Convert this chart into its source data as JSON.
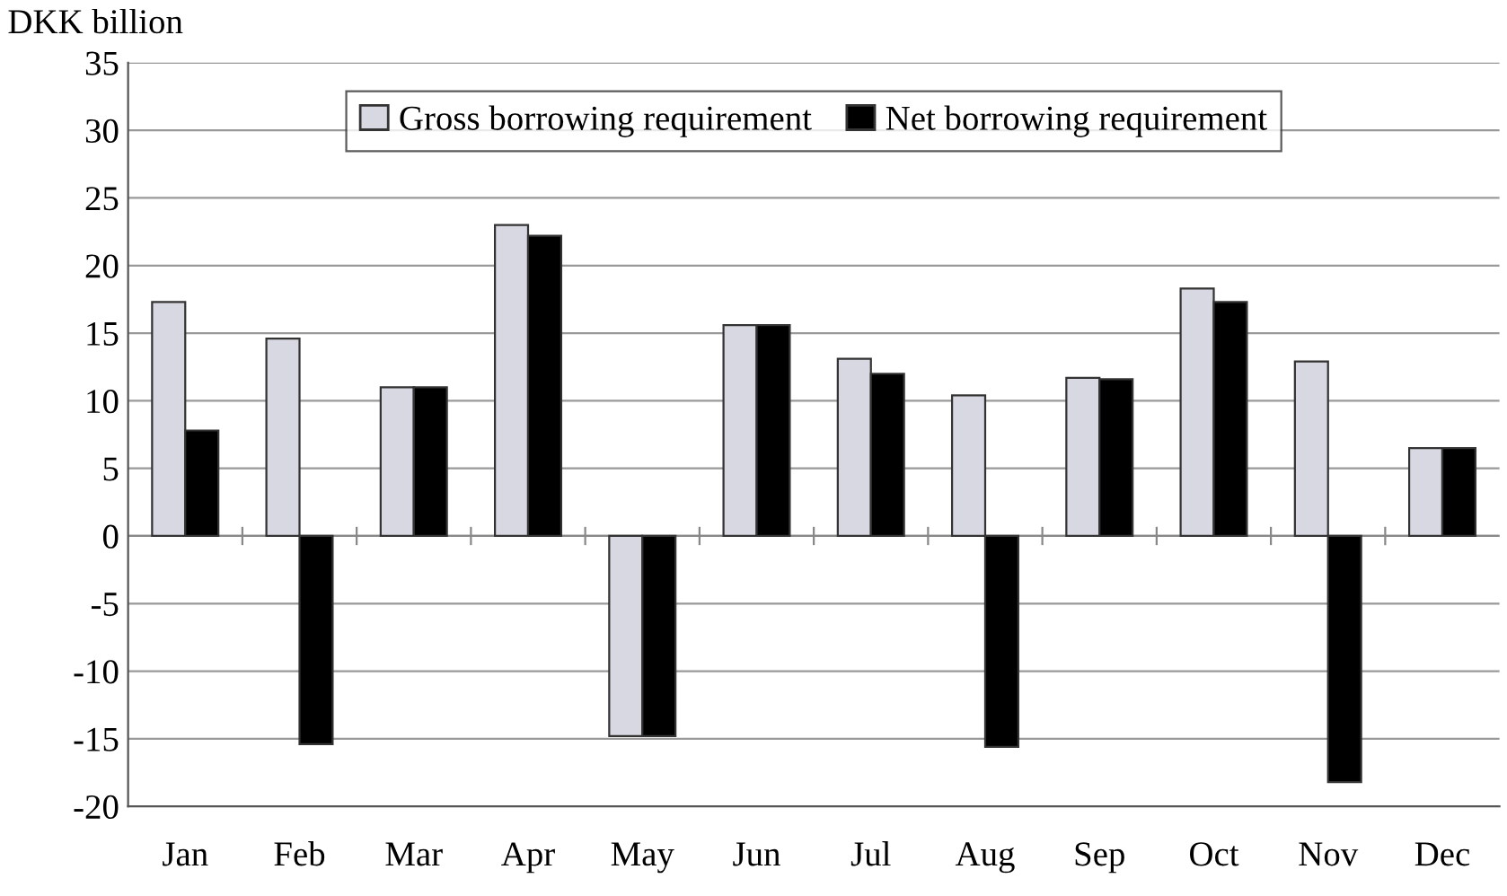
{
  "chart_data": {
    "type": "bar",
    "ylabel": "DKK billion",
    "categories": [
      "Jan",
      "Feb",
      "Mar",
      "Apr",
      "May",
      "Jun",
      "Jul",
      "Aug",
      "Sep",
      "Oct",
      "Nov",
      "Dec"
    ],
    "series": [
      {
        "name": "Gross borrowing requirement",
        "color": "#d8d8e2",
        "values": [
          17.3,
          14.6,
          11.0,
          23.0,
          -14.8,
          15.6,
          13.1,
          10.4,
          11.7,
          18.3,
          12.9,
          6.5
        ]
      },
      {
        "name": "Net borrowing requirement",
        "color": "#000000",
        "values": [
          7.8,
          -15.4,
          11.0,
          22.2,
          -14.8,
          15.6,
          12.0,
          -15.6,
          11.6,
          17.3,
          -18.2,
          6.5
        ]
      }
    ],
    "ylim": [
      -20,
      35
    ],
    "yticks": [
      -20,
      -15,
      -10,
      -5,
      0,
      5,
      10,
      15,
      20,
      25,
      30,
      35
    ],
    "grid": "y",
    "legend": "top"
  }
}
